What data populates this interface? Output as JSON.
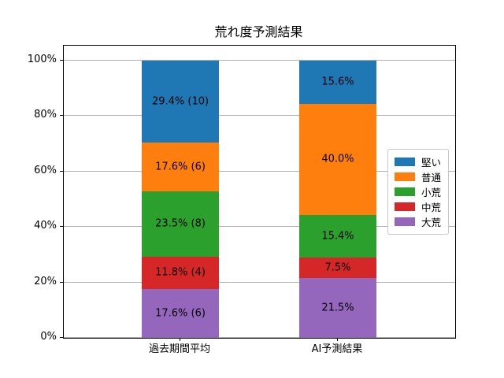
{
  "chart_data": {
    "type": "bar",
    "stacked": true,
    "title": "荒れ度予測結果",
    "categories": [
      "過去期間平均",
      "AI予測結果"
    ],
    "series": [
      {
        "name": "堅い",
        "color": "#1f77b4",
        "values": [
          29.4,
          15.6
        ],
        "labels": [
          "29.4% (10)",
          "15.6%"
        ]
      },
      {
        "name": "普通",
        "color": "#ff7f0e",
        "values": [
          17.6,
          40.0
        ],
        "labels": [
          "17.6% (6)",
          "40.0%"
        ]
      },
      {
        "name": "小荒",
        "color": "#2ca02c",
        "values": [
          23.5,
          15.4
        ],
        "labels": [
          "23.5% (8)",
          "15.4%"
        ]
      },
      {
        "name": "中荒",
        "color": "#d62728",
        "values": [
          11.8,
          7.5
        ],
        "labels": [
          "11.8% (4)",
          "7.5%"
        ]
      },
      {
        "name": "大荒",
        "color": "#9467bd",
        "values": [
          17.6,
          21.5
        ],
        "labels": [
          "17.6% (6)",
          "21.5%"
        ]
      }
    ],
    "counts_past_period": [
      10,
      6,
      8,
      4,
      6
    ],
    "stack_order_bottom_to_top": [
      "大荒",
      "中荒",
      "小荒",
      "普通",
      "堅い"
    ],
    "y_ticks": [
      "0%",
      "20%",
      "40%",
      "60%",
      "80%",
      "100%"
    ],
    "ylim": [
      0,
      105.4
    ],
    "grid": true,
    "legend_position": "center right",
    "grid_color": "#b0b0b0",
    "text_color": "#000000",
    "background_color": "#ffffff"
  }
}
